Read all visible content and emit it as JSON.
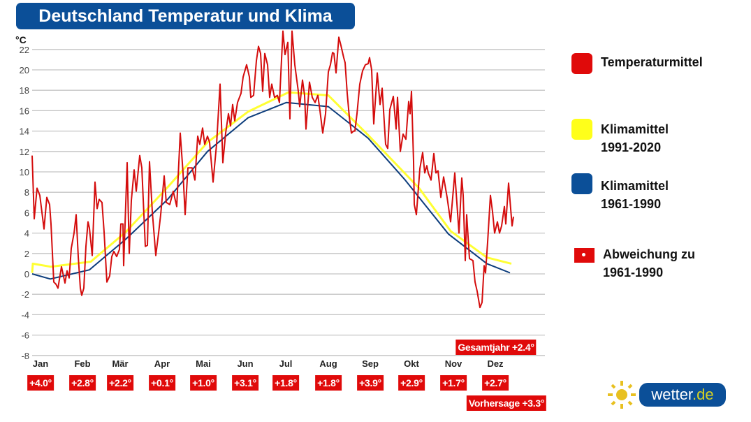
{
  "title": "Deutschland Temperatur und Klima",
  "colors": {
    "temperature": "#d40d0d",
    "clim_1991_2020": "#ffff33",
    "clim_1961_1990": "#0d3d7c",
    "badge": "#e00a0a",
    "title_bg": "#0b4f98"
  },
  "chart_data": {
    "type": "line",
    "title": "Deutschland Temperatur und Klima",
    "ylabel": "°C",
    "ylim": [
      -8,
      22
    ],
    "yticks": [
      "22",
      "20",
      "18",
      "16",
      "14",
      "12",
      "10",
      "8",
      "6",
      "4",
      "2",
      "0",
      "-2",
      "-4",
      "-6",
      "-8"
    ],
    "xlim_day_of_year": [
      0,
      365
    ],
    "grid": true,
    "legend_position": "right",
    "month_labels": [
      "Jan",
      "Feb",
      "Mär",
      "Apr",
      "Mai",
      "Jun",
      "Jul",
      "Aug",
      "Sep",
      "Okt",
      "Nov",
      "Dez"
    ],
    "series": [
      {
        "name": "Temperaturmittel",
        "color": "#d40d0d",
        "points": [
          [
            0,
            11.6
          ],
          [
            1.5,
            5.4
          ],
          [
            3.5,
            8.4
          ],
          [
            5.5,
            7.7
          ],
          [
            8.5,
            4.4
          ],
          [
            10.5,
            7.5
          ],
          [
            12.5,
            6.8
          ],
          [
            13.5,
            4.9
          ],
          [
            15.5,
            -0.8
          ],
          [
            17,
            -1.0
          ],
          [
            18.5,
            -1.4
          ],
          [
            21,
            0.7
          ],
          [
            23.5,
            -0.9
          ],
          [
            25,
            0.3
          ],
          [
            26.5,
            -0.4
          ],
          [
            28,
            2.5
          ],
          [
            30,
            4.0
          ],
          [
            31.5,
            5.8
          ],
          [
            33,
            1.7
          ],
          [
            34.5,
            -1.4
          ],
          [
            35.5,
            -2.1
          ],
          [
            37,
            -1.4
          ],
          [
            38.5,
            2.7
          ],
          [
            40,
            5.1
          ],
          [
            41,
            4.5
          ],
          [
            43,
            1.8
          ],
          [
            45,
            9.0
          ],
          [
            46.5,
            6.4
          ],
          [
            48,
            7.3
          ],
          [
            50,
            7.0
          ],
          [
            51.5,
            4.1
          ],
          [
            53.5,
            -0.8
          ],
          [
            55.5,
            -0.2
          ],
          [
            57,
            1.7
          ],
          [
            58.5,
            2.2
          ],
          [
            60.5,
            1.7
          ],
          [
            62.5,
            2.4
          ],
          [
            63.5,
            4.9
          ],
          [
            65,
            4.9
          ],
          [
            65.5,
            0.8
          ],
          [
            68,
            10.9
          ],
          [
            69.5,
            2.0
          ],
          [
            71,
            7.2
          ],
          [
            73,
            10.2
          ],
          [
            74.5,
            8.1
          ],
          [
            77,
            11.6
          ],
          [
            78.5,
            10.4
          ],
          [
            81,
            2.7
          ],
          [
            82.5,
            2.8
          ],
          [
            84,
            11.0
          ],
          [
            86,
            6.1
          ],
          [
            88.5,
            1.8
          ],
          [
            90.5,
            4.0
          ],
          [
            92,
            5.8
          ],
          [
            94.5,
            9.6
          ],
          [
            96,
            7.0
          ],
          [
            98.5,
            6.8
          ],
          [
            101,
            8.1
          ],
          [
            103.5,
            6.6
          ],
          [
            106,
            13.8
          ],
          [
            108,
            9.9
          ],
          [
            109.5,
            5.8
          ],
          [
            111.5,
            10.4
          ],
          [
            114.5,
            10.4
          ],
          [
            116.5,
            9.2
          ],
          [
            118.5,
            13.5
          ],
          [
            120,
            12.7
          ],
          [
            122,
            14.3
          ],
          [
            123.5,
            12.7
          ],
          [
            125.5,
            13.5
          ],
          [
            127,
            12.9
          ],
          [
            129.5,
            9.0
          ],
          [
            132,
            12.7
          ],
          [
            134.5,
            18.6
          ],
          [
            136.5,
            10.9
          ],
          [
            138.5,
            13.8
          ],
          [
            140.5,
            15.7
          ],
          [
            142,
            14.5
          ],
          [
            143.5,
            16.6
          ],
          [
            145,
            15.0
          ],
          [
            147,
            16.8
          ],
          [
            149.5,
            17.7
          ],
          [
            151,
            19.3
          ],
          [
            153.5,
            20.5
          ],
          [
            155.5,
            19.3
          ],
          [
            156.5,
            17.3
          ],
          [
            158.5,
            17.5
          ],
          [
            160.5,
            20.9
          ],
          [
            162,
            22.3
          ],
          [
            163.5,
            21.6
          ],
          [
            165,
            17.9
          ],
          [
            166.5,
            21.6
          ],
          [
            168.5,
            20.5
          ],
          [
            170,
            17.3
          ],
          [
            171.5,
            18.6
          ],
          [
            173.5,
            17.3
          ],
          [
            175.5,
            17.5
          ],
          [
            177,
            16.8
          ],
          [
            179.5,
            23.8
          ],
          [
            181,
            21.5
          ],
          [
            183,
            22.7
          ],
          [
            184.5,
            15.2
          ],
          [
            186,
            23.8
          ],
          [
            188,
            20.5
          ],
          [
            190.5,
            17.9
          ],
          [
            191.5,
            16.4
          ],
          [
            193.5,
            19.0
          ],
          [
            195,
            17.5
          ],
          [
            196,
            14.2
          ],
          [
            198.5,
            18.8
          ],
          [
            200.5,
            17.3
          ],
          [
            202.5,
            16.8
          ],
          [
            204.5,
            17.5
          ],
          [
            206,
            16.0
          ],
          [
            208,
            13.8
          ],
          [
            210,
            15.7
          ],
          [
            212,
            19.8
          ],
          [
            213.5,
            20.5
          ],
          [
            215,
            21.7
          ],
          [
            216,
            21.6
          ],
          [
            217.5,
            19.7
          ],
          [
            219.5,
            23.2
          ],
          [
            221,
            22.4
          ],
          [
            223,
            21.2
          ],
          [
            224,
            20.7
          ],
          [
            225.5,
            17.7
          ],
          [
            227,
            15.4
          ],
          [
            228.5,
            13.8
          ],
          [
            230,
            14.0
          ],
          [
            231,
            14.0
          ],
          [
            232.5,
            15.7
          ],
          [
            234.5,
            18.6
          ],
          [
            236.5,
            19.9
          ],
          [
            238.5,
            20.5
          ],
          [
            240.5,
            20.6
          ],
          [
            241.5,
            21.2
          ],
          [
            243,
            20.0
          ],
          [
            244.5,
            14.7
          ],
          [
            247,
            19.7
          ],
          [
            249,
            16.6
          ],
          [
            250.5,
            18.2
          ],
          [
            253,
            12.7
          ],
          [
            254.5,
            12.3
          ],
          [
            256,
            16.1
          ],
          [
            258.5,
            17.4
          ],
          [
            260.5,
            14.2
          ],
          [
            261.5,
            17.3
          ],
          [
            263.5,
            12.0
          ],
          [
            265.5,
            13.7
          ],
          [
            267.5,
            13.2
          ],
          [
            269.5,
            16.9
          ],
          [
            270.5,
            15.7
          ],
          [
            271.5,
            17.9
          ],
          [
            273,
            11.0
          ],
          [
            273.5,
            6.8
          ],
          [
            275,
            5.8
          ],
          [
            277.5,
            10.3
          ],
          [
            279.5,
            11.9
          ],
          [
            281,
            9.9
          ],
          [
            282.5,
            10.6
          ],
          [
            283.5,
            9.9
          ],
          [
            285.5,
            9.2
          ],
          [
            287.5,
            11.8
          ],
          [
            289,
            9.9
          ],
          [
            290.5,
            10.1
          ],
          [
            292.5,
            7.5
          ],
          [
            294.5,
            9.5
          ],
          [
            297,
            7.5
          ],
          [
            299.5,
            5.1
          ],
          [
            302.5,
            9.9
          ],
          [
            305.5,
            4.0
          ],
          [
            307.5,
            9.4
          ],
          [
            308.5,
            7.7
          ],
          [
            310,
            1.3
          ],
          [
            311,
            5.8
          ],
          [
            313,
            1.5
          ],
          [
            315.5,
            1.3
          ],
          [
            317,
            -0.8
          ],
          [
            318.5,
            -1.7
          ],
          [
            320.5,
            -3.3
          ],
          [
            322,
            -2.8
          ],
          [
            323.5,
            0.8
          ],
          [
            324.5,
            0.1
          ],
          [
            326,
            3.1
          ],
          [
            328,
            7.7
          ],
          [
            329.5,
            6.1
          ],
          [
            331,
            4.0
          ],
          [
            333,
            5.1
          ],
          [
            334.5,
            4.0
          ],
          [
            336,
            4.7
          ],
          [
            338,
            6.6
          ],
          [
            339,
            4.9
          ],
          [
            341,
            8.9
          ],
          [
            343.5,
            4.7
          ],
          [
            344.5,
            5.6
          ]
        ]
      },
      {
        "name": "Klimamittel 1991-2020",
        "color": "#ffff33",
        "points": [
          [
            0,
            0.1
          ],
          [
            0.5,
            1.0
          ],
          [
            13.5,
            0.7
          ],
          [
            42,
            1.2
          ],
          [
            67,
            4.1
          ],
          [
            97,
            8.5
          ],
          [
            125.5,
            12.9
          ],
          [
            154.5,
            15.9
          ],
          [
            183.5,
            17.8
          ],
          [
            212,
            17.5
          ],
          [
            240.5,
            13.6
          ],
          [
            277,
            8.4
          ],
          [
            299.5,
            4.2
          ],
          [
            325.5,
            1.6
          ],
          [
            343,
            1.0
          ]
        ]
      },
      {
        "name": "Klimamittel 1961-1990",
        "color": "#0d3d7c",
        "points": [
          [
            0,
            0
          ],
          [
            13,
            -0.5
          ],
          [
            41,
            0.4
          ],
          [
            67,
            3.4
          ],
          [
            97,
            7.3
          ],
          [
            125.5,
            12.0
          ],
          [
            154.5,
            15.3
          ],
          [
            182,
            16.8
          ],
          [
            212,
            16.4
          ],
          [
            240.5,
            13.3
          ],
          [
            267,
            9.2
          ],
          [
            298,
            3.9
          ],
          [
            325.5,
            1.0
          ],
          [
            342,
            0.1
          ]
        ]
      }
    ]
  },
  "legend": [
    {
      "line1": "Temperaturmittel",
      "line2": ""
    },
    {
      "line1": "Klimamittel",
      "line2": "1991-2020"
    },
    {
      "line1": "Klimamittel",
      "line2": "1961-1990"
    },
    {
      "line1": "Abweichung zu",
      "line2": "1961-1990"
    }
  ],
  "deviations": [
    "+4.0°",
    "+2.8°",
    "+2.2°",
    "+0.1°",
    "+1.0°",
    "+3.1°",
    "+1.8°",
    "+1.8°",
    "+3.9°",
    "+2.9°",
    "+1.7°",
    "+2.7°"
  ],
  "annual": "Gesamtjahr +2.4°",
  "forecast": "Vorhersage +3.3°",
  "logo": {
    "text": "wetter",
    "suffix": ".de"
  }
}
